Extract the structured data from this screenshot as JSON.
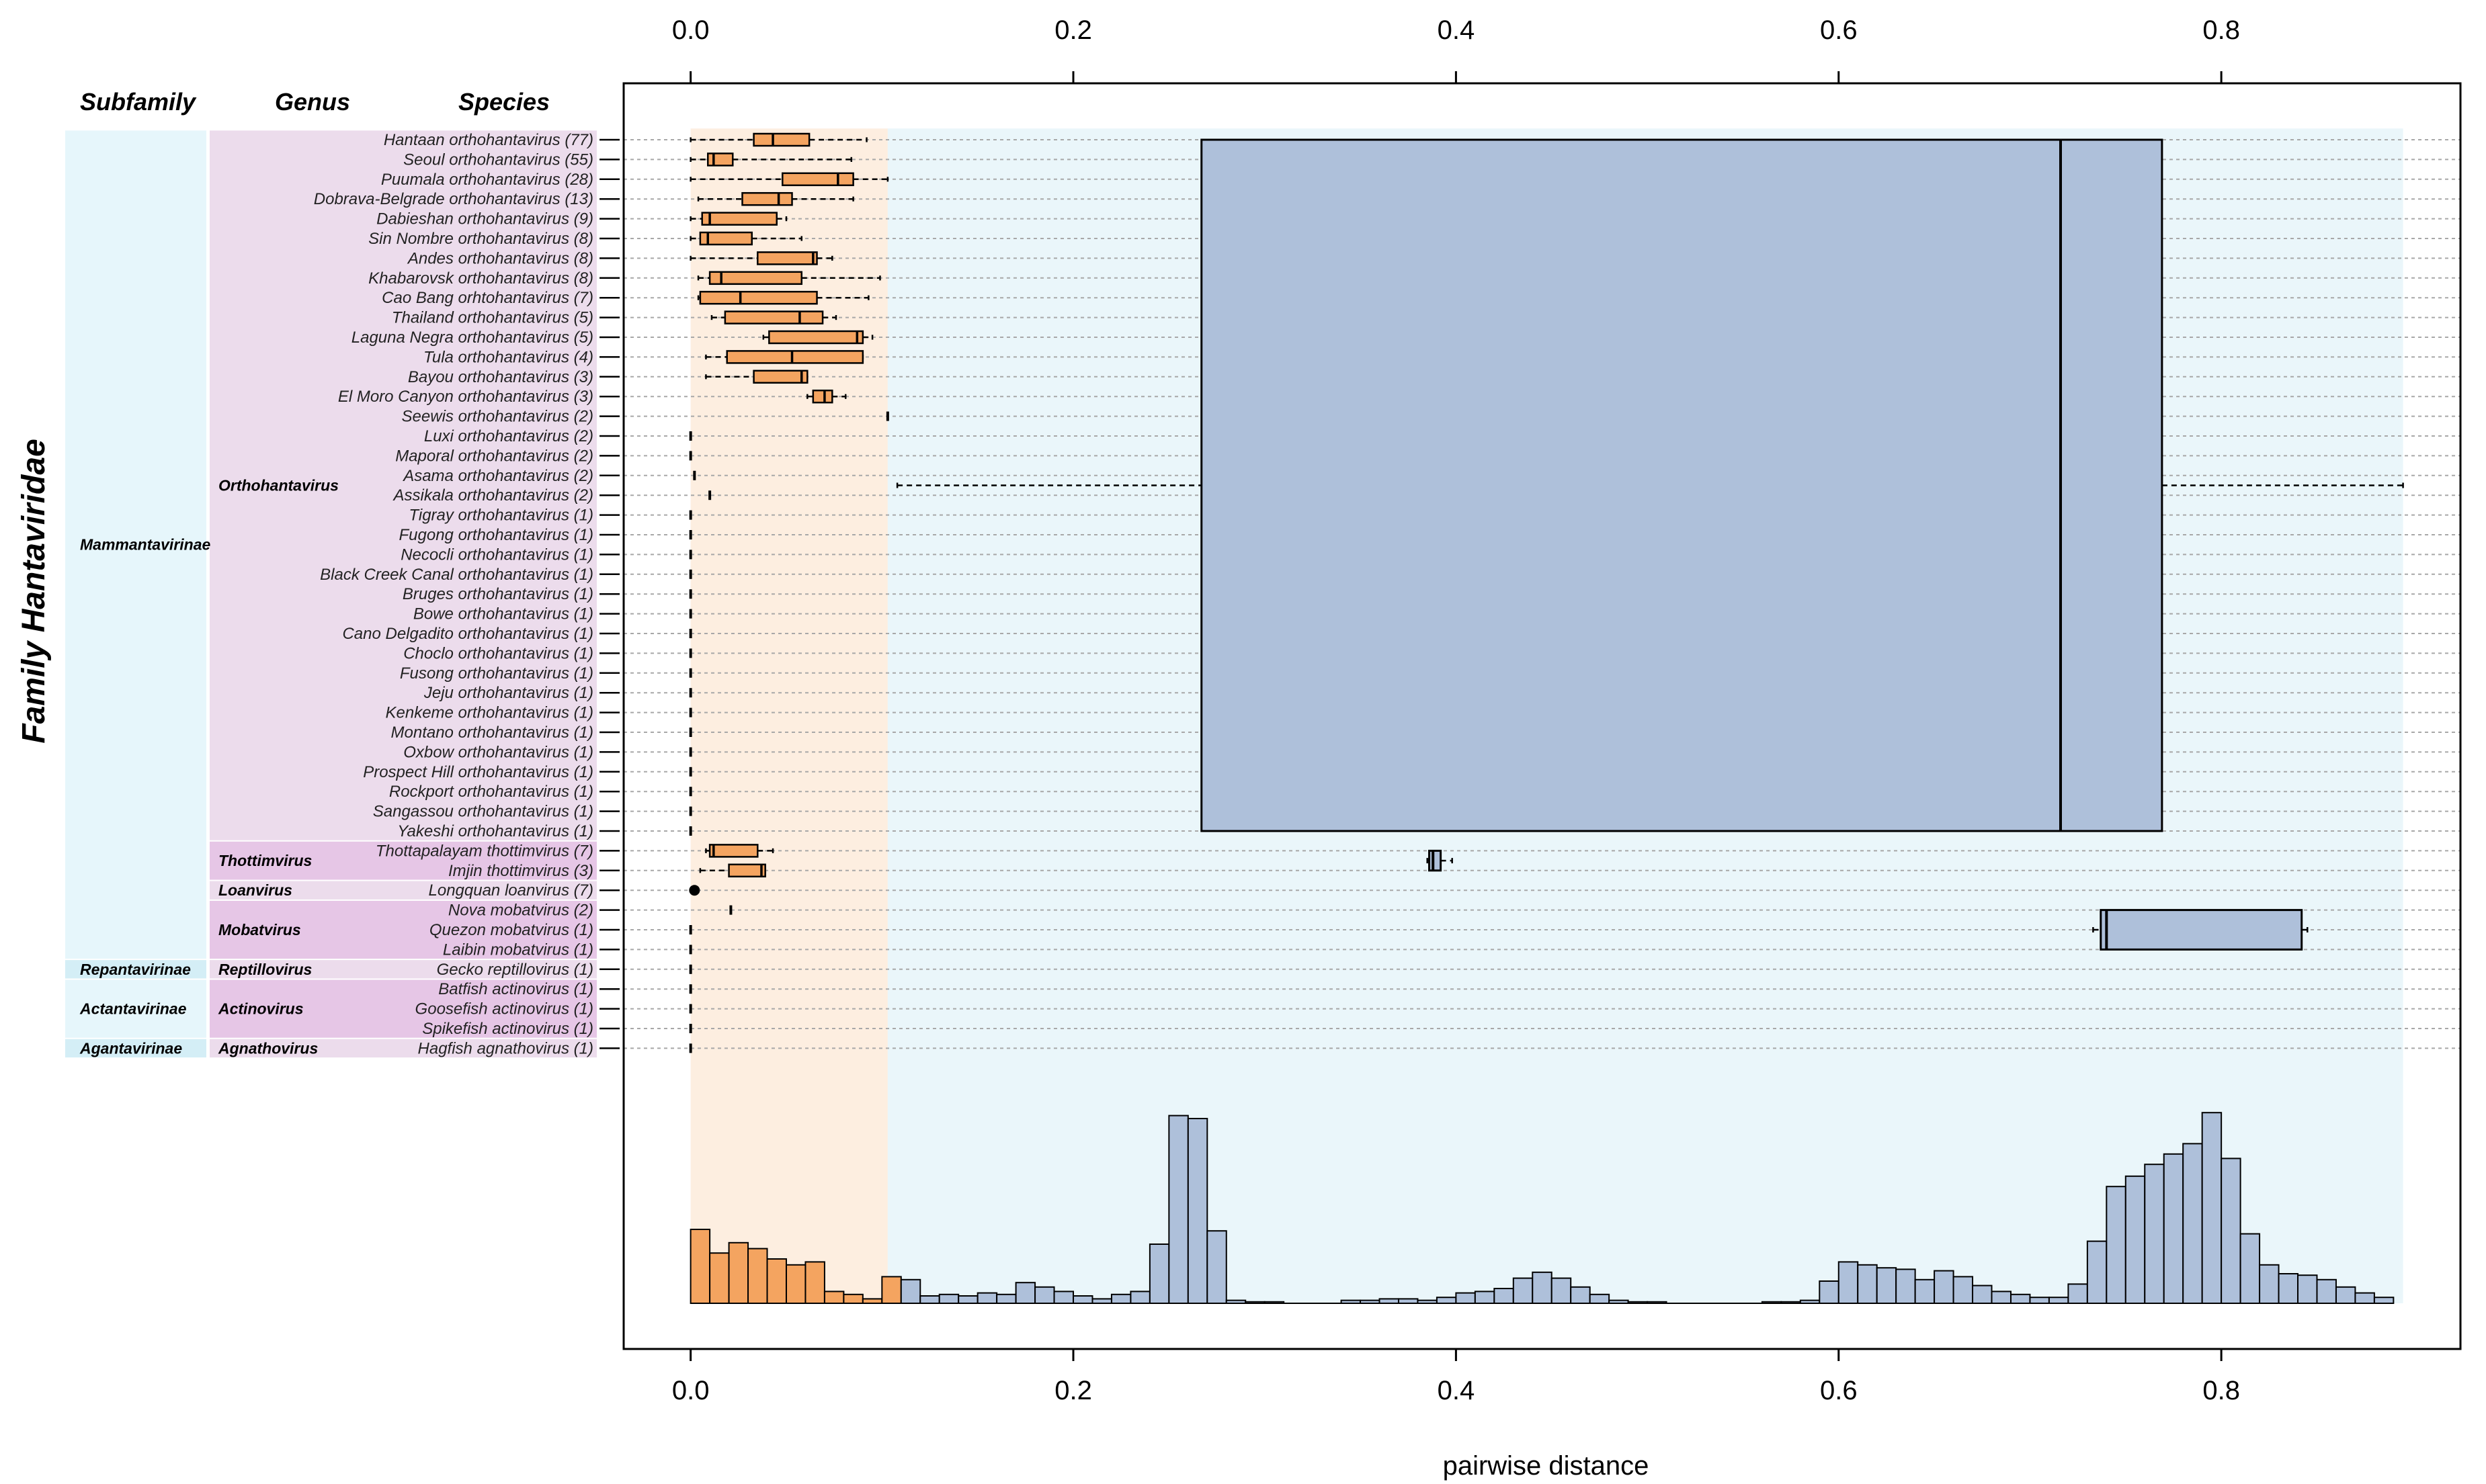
{
  "figure": {
    "y_title": "Family Hantaviridae",
    "headers": {
      "subfamily": "Subfamily",
      "genus": "Genus",
      "species": "Species"
    }
  },
  "colors": {
    "intra": "#f4a460",
    "inter": "#aec0da",
    "intra_band": "#fdeee0",
    "inter_band": "#eaf6fa",
    "subfamily_bg": "#e6f6fb",
    "genus_bg": "#ecdcec",
    "genus_bg_alt": "#e6c6e6",
    "subfamily_bg_alt": "#d4eef6"
  },
  "subfamilies": [
    {
      "name": "Mammantavirinae",
      "first": 0,
      "last": 41,
      "variant": 0
    },
    {
      "name": "Repantavirinae",
      "first": 42,
      "last": 42,
      "variant": 1
    },
    {
      "name": "Actantavirinae",
      "first": 43,
      "last": 45,
      "variant": 0
    },
    {
      "name": "Agantavirinae",
      "first": 46,
      "last": 46,
      "variant": 1
    }
  ],
  "genera": [
    {
      "name": "Orthohantavirus",
      "first": 0,
      "last": 35,
      "variant": 0
    },
    {
      "name": "Thottimvirus",
      "first": 36,
      "last": 37,
      "variant": 1
    },
    {
      "name": "Loanvirus",
      "first": 38,
      "last": 38,
      "variant": 0
    },
    {
      "name": "Mobatvirus",
      "first": 39,
      "last": 41,
      "variant": 1
    },
    {
      "name": "Reptillovirus",
      "first": 42,
      "last": 42,
      "variant": 0
    },
    {
      "name": "Actinovirus",
      "first": 43,
      "last": 45,
      "variant": 1
    },
    {
      "name": "Agnathovirus",
      "first": 46,
      "last": 46,
      "variant": 0
    }
  ],
  "species": [
    "Hantaan orthohantavirus (77)",
    "Seoul orthohantavirus (55)",
    "Puumala orthohantavirus (28)",
    "Dobrava-Belgrade orthohantavirus (13)",
    "Dabieshan orthohantavirus (9)",
    "Sin Nombre orthohantavirus (8)",
    "Andes orthohantavirus (8)",
    "Khabarovsk orthohantavirus (8)",
    "Cao Bang orhtohantavirus (7)",
    "Thailand orthohantavirus (5)",
    "Laguna Negra orthohantavirus (5)",
    "Tula orthohantavirus (4)",
    "Bayou orthohantavirus (3)",
    "El Moro Canyon orthohantavirus (3)",
    "Seewis orthohantavirus (2)",
    "Luxi orthohantavirus (2)",
    "Maporal orthohantavirus (2)",
    "Asama orthohantavirus (2)",
    "Assikala orthohantavirus (2)",
    "Tigray orthohantavirus (1)",
    "Fugong orthohantavirus (1)",
    "Necocli orthohantavirus (1)",
    "Black Creek Canal orthohantavirus (1)",
    "Bruges orthohantavirus (1)",
    "Bowe orthohantavirus (1)",
    "Cano Delgadito orthohantavirus (1)",
    "Choclo orthohantavirus (1)",
    "Fusong orthohantavirus (1)",
    "Jeju orthohantavirus (1)",
    "Kenkeme orthohantavirus (1)",
    "Montano orthohantavirus (1)",
    "Oxbow orthohantavirus (1)",
    "Prospect Hill orthohantavirus (1)",
    "Rockport orthohantavirus (1)",
    "Sangassou orthohantavirus (1)",
    "Yakeshi orthohantavirus (1)",
    "Thottapalayam thottimvirus (7)",
    "Imjin thottimvirus (3)",
    "Longquan loanvirus (7)",
    "Nova mobatvirus (2)",
    "Quezon mobatvirus (1)",
    "Laibin mobatvirus (1)",
    "Gecko reptillovirus (1)",
    "Batfish actinovirus (1)",
    "Goosefish actinovirus (1)",
    "Spikefish actinovirus (1)",
    "Hagfish agnathovirus (1)"
  ],
  "chart_data": {
    "type": "boxplot+histogram",
    "xlabel": "pairwise distance",
    "xlim": [
      -0.035,
      0.925
    ],
    "x_ticks": [
      "0.0",
      "0.2",
      "0.4",
      "0.6",
      "0.8"
    ],
    "x_tick_values": [
      0.0,
      0.2,
      0.4,
      0.6,
      0.8
    ],
    "bands": {
      "intra": [
        0.0,
        0.103
      ],
      "inter": [
        0.103,
        0.895
      ]
    },
    "intra_boxes": [
      {
        "row": 0,
        "min": 0.0,
        "q1": 0.033,
        "median": 0.043,
        "q3": 0.062,
        "max": 0.092
      },
      {
        "row": 1,
        "min": 0.0,
        "q1": 0.009,
        "median": 0.012,
        "q3": 0.022,
        "max": 0.084
      },
      {
        "row": 2,
        "min": 0.0,
        "q1": 0.048,
        "median": 0.077,
        "q3": 0.085,
        "max": 0.103
      },
      {
        "row": 3,
        "min": 0.004,
        "q1": 0.027,
        "median": 0.046,
        "q3": 0.053,
        "max": 0.085
      },
      {
        "row": 4,
        "min": 0.0,
        "q1": 0.006,
        "median": 0.01,
        "q3": 0.045,
        "max": 0.05
      },
      {
        "row": 5,
        "min": 0.0,
        "q1": 0.005,
        "median": 0.009,
        "q3": 0.032,
        "max": 0.058
      },
      {
        "row": 6,
        "min": 0.0,
        "q1": 0.035,
        "median": 0.064,
        "q3": 0.066,
        "max": 0.074
      },
      {
        "row": 7,
        "min": 0.004,
        "q1": 0.01,
        "median": 0.016,
        "q3": 0.058,
        "max": 0.099
      },
      {
        "row": 8,
        "min": 0.004,
        "q1": 0.005,
        "median": 0.026,
        "q3": 0.066,
        "max": 0.093
      },
      {
        "row": 9,
        "min": 0.011,
        "q1": 0.018,
        "median": 0.057,
        "q3": 0.069,
        "max": 0.076
      },
      {
        "row": 10,
        "min": 0.038,
        "q1": 0.041,
        "median": 0.087,
        "q3": 0.09,
        "max": 0.095
      },
      {
        "row": 11,
        "min": 0.008,
        "q1": 0.019,
        "median": 0.053,
        "q3": 0.09,
        "max": 0.09
      },
      {
        "row": 12,
        "min": 0.008,
        "q1": 0.033,
        "median": 0.058,
        "q3": 0.061,
        "max": 0.061
      },
      {
        "row": 13,
        "min": 0.061,
        "q1": 0.064,
        "median": 0.07,
        "q3": 0.074,
        "max": 0.081
      },
      {
        "row": 14,
        "min": 0.103,
        "q1": 0.103,
        "median": 0.103,
        "q3": 0.103,
        "max": 0.103
      },
      {
        "row": 15,
        "min": 0.0,
        "q1": 0.0,
        "median": 0.0,
        "q3": 0.0,
        "max": 0.0
      },
      {
        "row": 16,
        "min": 0.0,
        "q1": 0.0,
        "median": 0.0,
        "q3": 0.0,
        "max": 0.0
      },
      {
        "row": 17,
        "min": 0.002,
        "q1": 0.002,
        "median": 0.002,
        "q3": 0.002,
        "max": 0.002
      },
      {
        "row": 18,
        "min": 0.01,
        "q1": 0.01,
        "median": 0.01,
        "q3": 0.01,
        "max": 0.01
      },
      {
        "row": 19,
        "min": 0.0,
        "q1": 0.0,
        "median": 0.0,
        "q3": 0.0,
        "max": 0.0
      },
      {
        "row": 20,
        "min": 0.0,
        "q1": 0.0,
        "median": 0.0,
        "q3": 0.0,
        "max": 0.0
      },
      {
        "row": 21,
        "min": 0.0,
        "q1": 0.0,
        "median": 0.0,
        "q3": 0.0,
        "max": 0.0
      },
      {
        "row": 22,
        "min": 0.0,
        "q1": 0.0,
        "median": 0.0,
        "q3": 0.0,
        "max": 0.0
      },
      {
        "row": 23,
        "min": 0.0,
        "q1": 0.0,
        "median": 0.0,
        "q3": 0.0,
        "max": 0.0
      },
      {
        "row": 24,
        "min": 0.0,
        "q1": 0.0,
        "median": 0.0,
        "q3": 0.0,
        "max": 0.0
      },
      {
        "row": 25,
        "min": 0.0,
        "q1": 0.0,
        "median": 0.0,
        "q3": 0.0,
        "max": 0.0
      },
      {
        "row": 26,
        "min": 0.0,
        "q1": 0.0,
        "median": 0.0,
        "q3": 0.0,
        "max": 0.0
      },
      {
        "row": 27,
        "min": 0.0,
        "q1": 0.0,
        "median": 0.0,
        "q3": 0.0,
        "max": 0.0
      },
      {
        "row": 28,
        "min": 0.0,
        "q1": 0.0,
        "median": 0.0,
        "q3": 0.0,
        "max": 0.0
      },
      {
        "row": 29,
        "min": 0.0,
        "q1": 0.0,
        "median": 0.0,
        "q3": 0.0,
        "max": 0.0
      },
      {
        "row": 30,
        "min": 0.0,
        "q1": 0.0,
        "median": 0.0,
        "q3": 0.0,
        "max": 0.0
      },
      {
        "row": 31,
        "min": 0.0,
        "q1": 0.0,
        "median": 0.0,
        "q3": 0.0,
        "max": 0.0
      },
      {
        "row": 32,
        "min": 0.0,
        "q1": 0.0,
        "median": 0.0,
        "q3": 0.0,
        "max": 0.0
      },
      {
        "row": 33,
        "min": 0.0,
        "q1": 0.0,
        "median": 0.0,
        "q3": 0.0,
        "max": 0.0
      },
      {
        "row": 34,
        "min": 0.0,
        "q1": 0.0,
        "median": 0.0,
        "q3": 0.0,
        "max": 0.0
      },
      {
        "row": 35,
        "min": 0.0,
        "q1": 0.0,
        "median": 0.0,
        "q3": 0.0,
        "max": 0.0
      },
      {
        "row": 36,
        "min": 0.008,
        "q1": 0.01,
        "median": 0.012,
        "q3": 0.035,
        "max": 0.043
      },
      {
        "row": 37,
        "min": 0.005,
        "q1": 0.02,
        "median": 0.037,
        "q3": 0.039,
        "max": 0.039
      },
      {
        "row": 38,
        "point": 0.002
      },
      {
        "row": 39,
        "min": 0.021,
        "q1": 0.021,
        "median": 0.021,
        "q3": 0.021,
        "max": 0.021
      },
      {
        "row": 40,
        "min": 0.0,
        "q1": 0.0,
        "median": 0.0,
        "q3": 0.0,
        "max": 0.0
      },
      {
        "row": 41,
        "min": 0.0,
        "q1": 0.0,
        "median": 0.0,
        "q3": 0.0,
        "max": 0.0
      },
      {
        "row": 42,
        "min": 0.0,
        "q1": 0.0,
        "median": 0.0,
        "q3": 0.0,
        "max": 0.0
      },
      {
        "row": 43,
        "min": 0.0,
        "q1": 0.0,
        "median": 0.0,
        "q3": 0.0,
        "max": 0.0
      },
      {
        "row": 44,
        "min": 0.0,
        "q1": 0.0,
        "median": 0.0,
        "q3": 0.0,
        "max": 0.0
      },
      {
        "row": 45,
        "min": 0.0,
        "q1": 0.0,
        "median": 0.0,
        "q3": 0.0,
        "max": 0.0
      },
      {
        "row": 46,
        "min": 0.0,
        "q1": 0.0,
        "median": 0.0,
        "q3": 0.0,
        "max": 0.0
      }
    ],
    "inter_boxes": [
      {
        "label": "Orthohantavirus",
        "first": 0,
        "last": 35,
        "min": 0.108,
        "q1": 0.267,
        "median": 0.716,
        "q3": 0.769,
        "max": 0.895
      },
      {
        "label": "Thottimvirus",
        "first": 36,
        "last": 37,
        "min": 0.385,
        "q1": 0.386,
        "median": 0.388,
        "q3": 0.392,
        "max": 0.398
      },
      {
        "label": "Mobatvirus",
        "first": 39,
        "last": 41,
        "min": 0.733,
        "q1": 0.737,
        "median": 0.74,
        "q3": 0.842,
        "max": 0.845
      }
    ],
    "histogram": {
      "bin_start": 0.0,
      "bin_width": 0.01,
      "ylim": [
        0,
        160
      ],
      "counts": [
        50,
        34,
        41,
        37,
        30,
        26,
        28,
        8,
        6,
        3,
        18,
        16,
        5,
        6,
        5,
        7,
        6,
        14,
        11,
        8,
        5,
        3,
        6,
        8,
        40,
        127,
        125,
        49,
        2,
        1,
        1,
        0,
        0,
        0,
        2,
        2,
        3,
        3,
        2,
        4,
        7,
        8,
        10,
        17,
        21,
        17,
        11,
        6,
        2,
        1,
        1,
        0,
        0,
        0,
        0,
        0,
        1,
        1,
        2,
        15,
        28,
        26,
        24,
        23,
        16,
        22,
        18,
        12,
        8,
        6,
        4,
        4,
        13,
        42,
        79,
        86,
        94,
        101,
        108,
        129,
        98,
        47,
        26,
        20,
        19,
        16,
        11,
        7,
        4
      ]
    }
  }
}
